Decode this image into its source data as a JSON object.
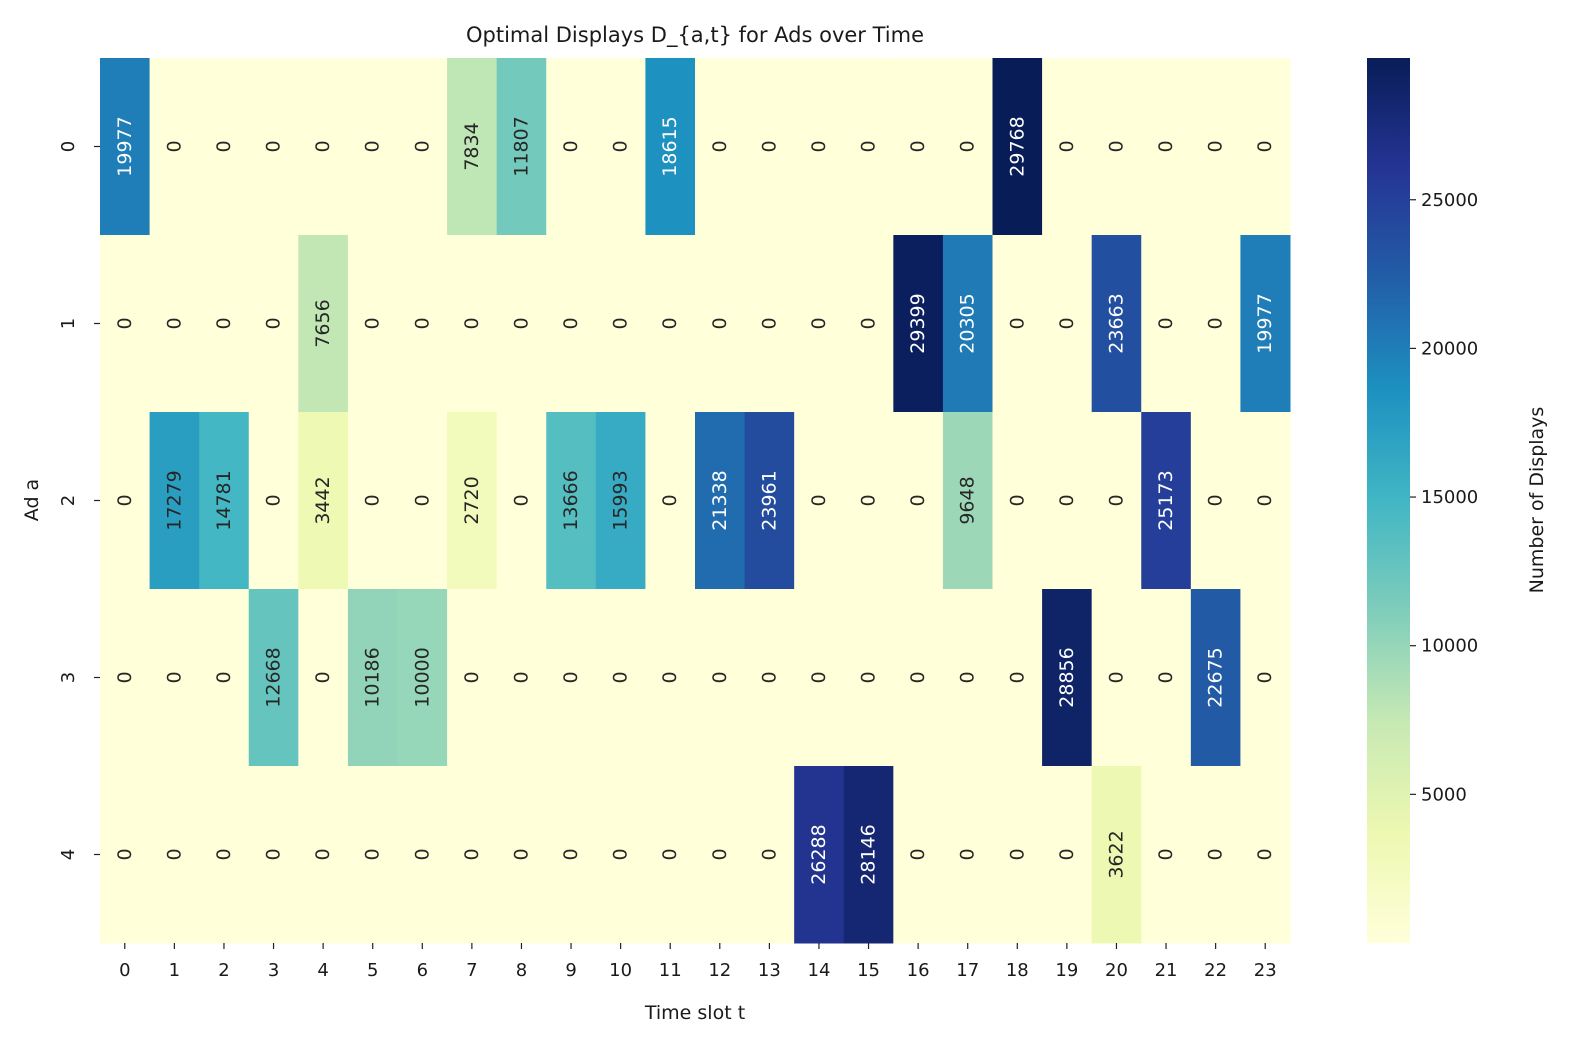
{
  "chart_data": {
    "type": "heatmap",
    "title": "Optimal Displays D_{a,t} for Ads over Time",
    "xlabel": "Time slot t",
    "ylabel": "Ad a",
    "colorbar_label": "Number of Displays",
    "colormap": [
      "#ffffd9",
      "#edf8b1",
      "#c7e9b4",
      "#7fcdbb",
      "#41b6c4",
      "#1d91c0",
      "#225ea8",
      "#253494",
      "#081d58"
    ],
    "vrange": [
      0,
      29768
    ],
    "colorbar_ticks": [
      5000,
      10000,
      15000,
      20000,
      25000
    ],
    "x_ticks": [
      "0",
      "1",
      "2",
      "3",
      "4",
      "5",
      "6",
      "7",
      "8",
      "9",
      "10",
      "11",
      "12",
      "13",
      "14",
      "15",
      "16",
      "17",
      "18",
      "19",
      "20",
      "21",
      "22",
      "23"
    ],
    "y_ticks": [
      "0",
      "1",
      "2",
      "3",
      "4"
    ],
    "values": [
      [
        19977,
        0,
        0,
        0,
        0,
        0,
        0,
        7834,
        11807,
        0,
        0,
        18615,
        0,
        0,
        0,
        0,
        0,
        0,
        29768,
        0,
        0,
        0,
        0,
        0
      ],
      [
        0,
        0,
        0,
        0,
        7656,
        0,
        0,
        0,
        0,
        0,
        0,
        0,
        0,
        0,
        0,
        0,
        29399,
        20305,
        0,
        0,
        23663,
        0,
        0,
        19977
      ],
      [
        0,
        17279,
        14781,
        0,
        3442,
        0,
        0,
        2720,
        0,
        13666,
        15993,
        0,
        21338,
        23961,
        0,
        0,
        0,
        9648,
        0,
        0,
        0,
        25173,
        0,
        0
      ],
      [
        0,
        0,
        0,
        12668,
        0,
        10186,
        10000,
        0,
        0,
        0,
        0,
        0,
        0,
        0,
        0,
        0,
        0,
        0,
        0,
        28856,
        0,
        0,
        22675,
        0
      ],
      [
        0,
        0,
        0,
        0,
        0,
        0,
        0,
        0,
        0,
        0,
        0,
        0,
        0,
        0,
        26288,
        28146,
        0,
        0,
        0,
        0,
        3622,
        0,
        0,
        0
      ]
    ]
  }
}
